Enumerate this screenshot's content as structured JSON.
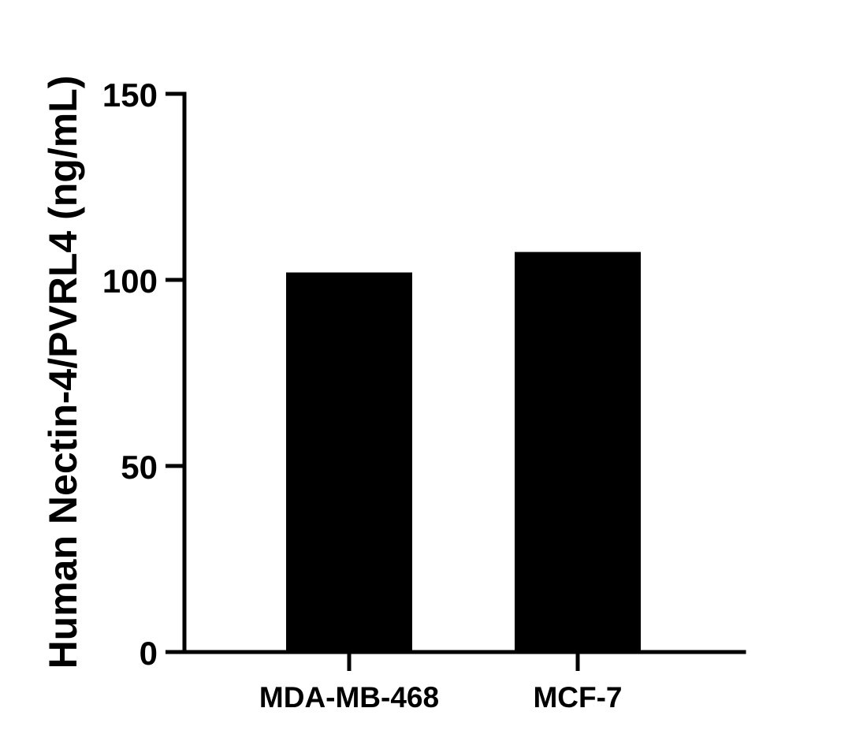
{
  "chart_data": {
    "type": "bar",
    "title": "",
    "xlabel": "",
    "ylabel": "Human Nectin-4/PVRL4 (ng/mL)",
    "categories": [
      "MDA-MB-468",
      "MCF-7"
    ],
    "values": [
      102,
      107.5
    ],
    "ylim": [
      0,
      150
    ],
    "yticks": [
      "0",
      "50",
      "100",
      "150"
    ],
    "grid": false,
    "legend": "none",
    "bar_color": "#000000",
    "axis_color": "#000000"
  }
}
